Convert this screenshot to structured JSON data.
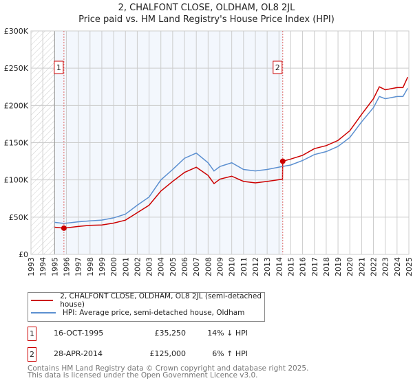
{
  "chart_data": {
    "type": "line",
    "title": "2, CHALFONT CLOSE, OLDHAM, OL8 2JL",
    "subtitle": "Price paid vs. HM Land Registry's House Price Index (HPI)",
    "xlim": [
      1993,
      2025
    ],
    "ylim": [
      0,
      300000
    ],
    "y_ticks": [
      {
        "v": 0,
        "label": "£0"
      },
      {
        "v": 50000,
        "label": "£50K"
      },
      {
        "v": 100000,
        "label": "£100K"
      },
      {
        "v": 150000,
        "label": "£150K"
      },
      {
        "v": 200000,
        "label": "£200K"
      },
      {
        "v": 250000,
        "label": "£250K"
      },
      {
        "v": 300000,
        "label": "£300K"
      }
    ],
    "x_ticks": [
      "1993",
      "1994",
      "1995",
      "1996",
      "1997",
      "1998",
      "1999",
      "2000",
      "2001",
      "2002",
      "2003",
      "2004",
      "2005",
      "2006",
      "2007",
      "2008",
      "2009",
      "2010",
      "2011",
      "2012",
      "2013",
      "2014",
      "2015",
      "2016",
      "2017",
      "2018",
      "2019",
      "2020",
      "2021",
      "2022",
      "2023",
      "2024",
      "2025"
    ],
    "grid": true,
    "series": [
      {
        "name": "2, CHALFONT CLOSE, OLDHAM, OL8 2JL (semi-detached house)",
        "color": "#cc0000",
        "x": [
          1995,
          1995.79,
          1997,
          1998,
          1999,
          2000,
          2001,
          2002,
          2003,
          2004,
          2005,
          2006,
          2007,
          2008,
          2008.5,
          2009,
          2010,
          2011,
          2012,
          2013,
          2014.3,
          2014.32,
          2015,
          2016,
          2017,
          2018,
          2019,
          2020,
          2021,
          2022,
          2022.5,
          2023,
          2024,
          2024.5,
          2024.9
        ],
        "y": [
          36500,
          35250,
          37500,
          39000,
          39500,
          42000,
          46000,
          56000,
          66000,
          85000,
          98000,
          110000,
          117000,
          106000,
          95000,
          101000,
          105000,
          98000,
          96000,
          98000,
          101000,
          125000,
          128000,
          133000,
          142000,
          146000,
          153000,
          166000,
          188000,
          209000,
          225000,
          221000,
          224000,
          224000,
          238000
        ]
      },
      {
        "name": "HPI: Average price, semi-detached house, Oldham",
        "color": "#5b8fd0",
        "x": [
          1995,
          1995.79,
          1997,
          1998,
          1999,
          2000,
          2001,
          2002,
          2003,
          2004,
          2005,
          2006,
          2007,
          2008,
          2008.5,
          2009,
          2010,
          2011,
          2012,
          2013,
          2014.3,
          2015,
          2016,
          2017,
          2018,
          2019,
          2020,
          2021,
          2022,
          2022.5,
          2023,
          2024,
          2024.5,
          2024.9
        ],
        "y": [
          43000,
          41500,
          43700,
          45000,
          46000,
          49000,
          54000,
          66000,
          77000,
          100000,
          114000,
          129000,
          136000,
          123000,
          112000,
          118000,
          123000,
          114000,
          112000,
          114000,
          118000,
          120000,
          126000,
          134000,
          138000,
          145000,
          157000,
          178000,
          197000,
          212000,
          209000,
          212000,
          212000,
          223000
        ]
      }
    ],
    "sales": [
      {
        "label": "1",
        "x": 1995.79,
        "y": 35250
      },
      {
        "label": "2",
        "x": 2014.32,
        "y": 125000
      }
    ],
    "shaded_range": [
      1995,
      2014.32
    ],
    "hatched_range": [
      1993,
      1995
    ]
  },
  "legend": [
    "2, CHALFONT CLOSE, OLDHAM, OL8 2JL (semi-detached house)",
    "HPI: Average price, semi-detached house, Oldham"
  ],
  "transactions": [
    {
      "num": "1",
      "date": "16-OCT-1995",
      "price": "£35,250",
      "hpi": "14% ↓ HPI"
    },
    {
      "num": "2",
      "date": "28-APR-2014",
      "price": "£125,000",
      "hpi": "6% ↑ HPI"
    }
  ],
  "footer": [
    "Contains HM Land Registry data © Crown copyright and database right 2025.",
    "This data is licensed under the Open Government Licence v3.0."
  ]
}
